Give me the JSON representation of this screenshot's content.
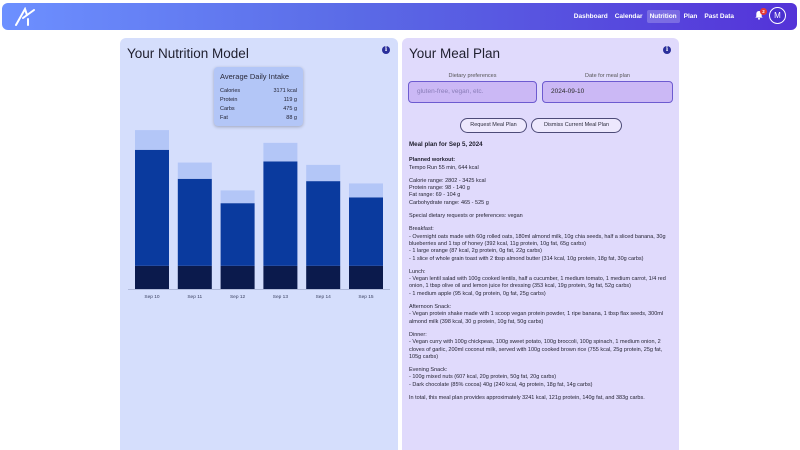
{
  "nav": {
    "logo_icon": "logo-icon",
    "links": [
      "Dashboard",
      "Calendar",
      "Nutrition",
      "Plan",
      "Past Data"
    ],
    "active_link": "Nutrition",
    "notification_count": "2",
    "avatar_initial": "M"
  },
  "nutrition_model": {
    "title": "Your Nutrition Model",
    "intake": {
      "title": "Average Daily Intake",
      "rows": [
        {
          "label": "Calories",
          "value": "3171 kcal"
        },
        {
          "label": "Protein",
          "value": "119 g"
        },
        {
          "label": "Carbs",
          "value": "475 g"
        },
        {
          "label": "Fat",
          "value": "88 g"
        }
      ]
    }
  },
  "chart_data": {
    "type": "bar",
    "stacked": true,
    "categories": [
      "Sep 10",
      "Sep 11",
      "Sep 12",
      "Sep 13",
      "Sep 14",
      "Sep 15"
    ],
    "series": [
      {
        "values": [
          0.2,
          0.2,
          0.2,
          0.2,
          0.2,
          0.2
        ],
        "color": "#0b1a4c"
      },
      {
        "values": [
          1.0,
          0.75,
          0.54,
          0.9,
          0.73,
          0.59
        ],
        "color": "#0a3a9e"
      },
      {
        "values": [
          0.17,
          0.14,
          0.11,
          0.16,
          0.14,
          0.12
        ],
        "color": "#b3c6f7"
      }
    ],
    "colors": {
      "bottom": "#0b1a4c",
      "middle": "#0a3a9e",
      "top": "#b3c6f7"
    },
    "grid": false,
    "legend": false
  },
  "meal_plan": {
    "title": "Your Meal Plan",
    "dietary_label": "Dietary preferences",
    "dietary_placeholder": "gluten-free, vegan, etc.",
    "date_label": "Date for meal plan",
    "date_value": "2024-09-10",
    "request_button": "Request Meal Plan",
    "dismiss_button": "Dismiss Current Meal Plan",
    "heading": "Meal plan for Sep 5, 2024",
    "planned_workout_label": "Planned workout:",
    "planned_workout": "Tempo Run 55 min, 644 kcal",
    "ranges": [
      "Calorie range: 2802 - 3425 kcal",
      "Protein range: 98 - 140 g",
      "Fat range: 69 - 104 g",
      "Carbohydrate range: 465 - 525 g"
    ],
    "special_requests": "Special dietary requests or preferences: vegan",
    "breakfast_label": "Breakfast:",
    "breakfast": [
      "- Overnight oats made with 60g rolled oats, 180ml almond milk, 10g chia seeds, half a sliced banana, 30g blueberries and 1 tsp of honey (392 kcal, 11g protein, 10g fat, 65g carbs)",
      "- 1 large orange (87 kcal, 2g protein, 0g fat, 22g carbs)",
      "- 1 slice of whole grain toast with 2 tbsp almond butter (314 kcal, 10g protein, 18g fat, 30g carbs)"
    ],
    "lunch_label": "Lunch:",
    "lunch": [
      "- Vegan lentil salad with 100g cooked lentils, half a cucumber, 1 medium tomato, 1 medium carrot, 1/4 red onion, 1 tbsp olive oil and lemon juice for dressing (353 kcal, 19g protein, 9g fat, 52g carbs)",
      "- 1 medium apple (95 kcal, 0g protein, 0g fat, 25g carbs)"
    ],
    "snack_label": "Afternoon Snack:",
    "snack": [
      "- Vegan protein shake made with 1 scoop vegan protein powder, 1 ripe banana, 1 tbsp flax seeds, 300ml almond milk (398 kcal, 30 g protein, 10g fat, 50g carbs)"
    ],
    "dinner_label": "Dinner:",
    "dinner": [
      "- Vegan curry with 100g chickpeas, 100g sweet potato, 100g broccoli, 100g spinach, 1 medium onion, 2 cloves of garlic, 200ml coconut milk, served with 100g cooked brown rice (755 kcal, 25g protein, 25g fat, 105g carbs)"
    ],
    "evening_label": "Evening Snack:",
    "evening": [
      "- 100g mixed nuts (607 kcal, 20g protein, 50g fat, 20g carbs)",
      "- Dark chocolate (85% cocoa) 40g (240 kcal, 4g protein, 18g fat, 14g carbs)"
    ],
    "total": "In total, this meal plan provides approximately 3241 kcal, 121g protein, 140g fat, and 383g carbs."
  }
}
